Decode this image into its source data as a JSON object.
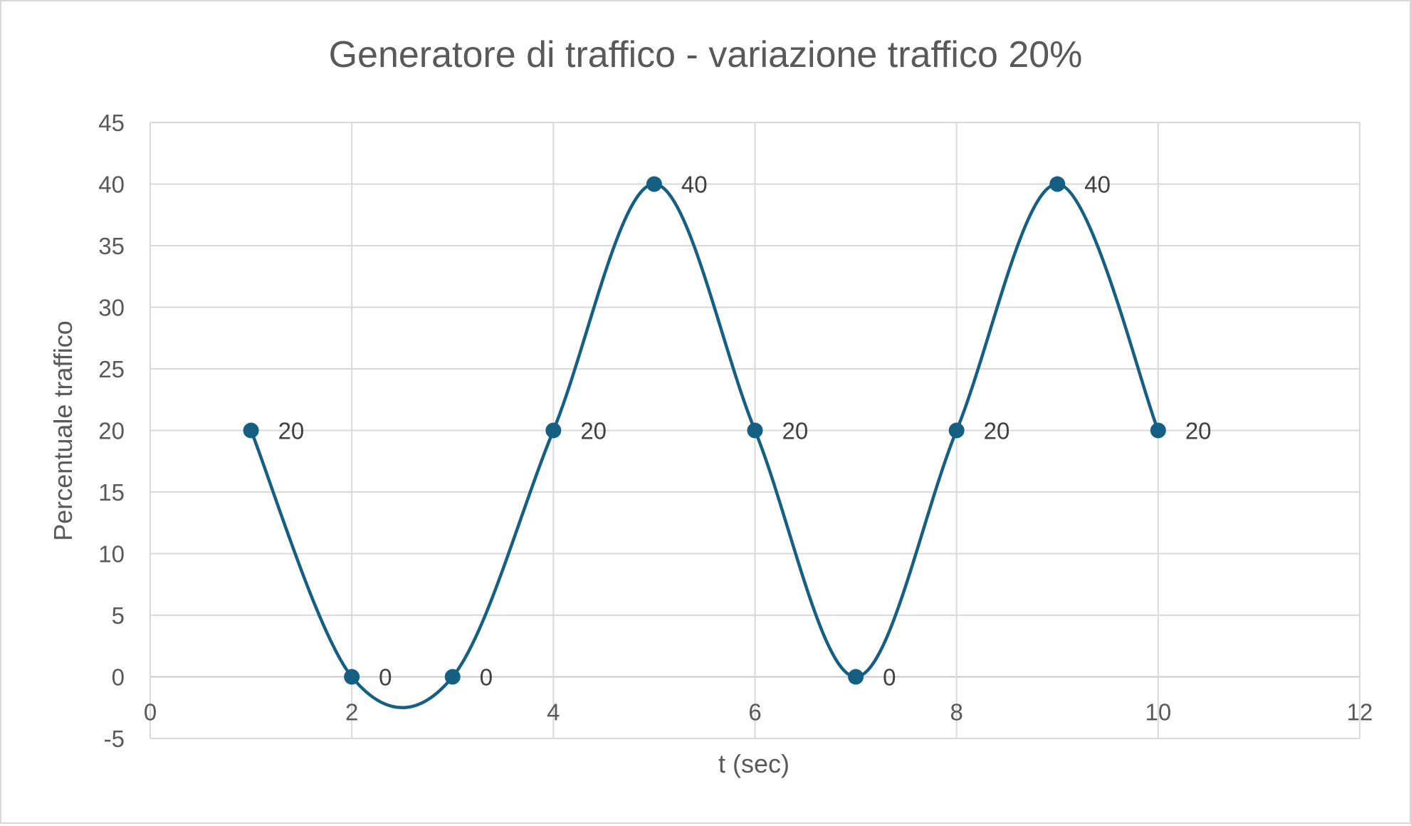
{
  "chart_data": {
    "type": "scatter",
    "title": "Generatore di traffico - variazione traffico 20%",
    "xlabel": "t (sec)",
    "ylabel": "Percentuale traffico",
    "xlim": [
      0,
      12
    ],
    "ylim": [
      -5,
      45
    ],
    "x_ticks": [
      0,
      2,
      4,
      6,
      8,
      10,
      12
    ],
    "y_ticks": [
      -5,
      0,
      5,
      10,
      15,
      20,
      25,
      30,
      35,
      40,
      45
    ],
    "grid": true,
    "smooth_line": true,
    "series": [
      {
        "x": [
          1,
          2,
          3,
          4,
          5,
          6,
          7,
          8,
          9,
          10
        ],
        "y": [
          20,
          0,
          0,
          20,
          40,
          20,
          0,
          20,
          40,
          20
        ],
        "labels": [
          "20",
          "0",
          "0",
          "20",
          "40",
          "20",
          "0",
          "20",
          "40",
          "20"
        ],
        "color": "#156082"
      }
    ]
  },
  "colors": {
    "grid": "#d9d9d9",
    "text": "#595959",
    "label": "#404040"
  }
}
